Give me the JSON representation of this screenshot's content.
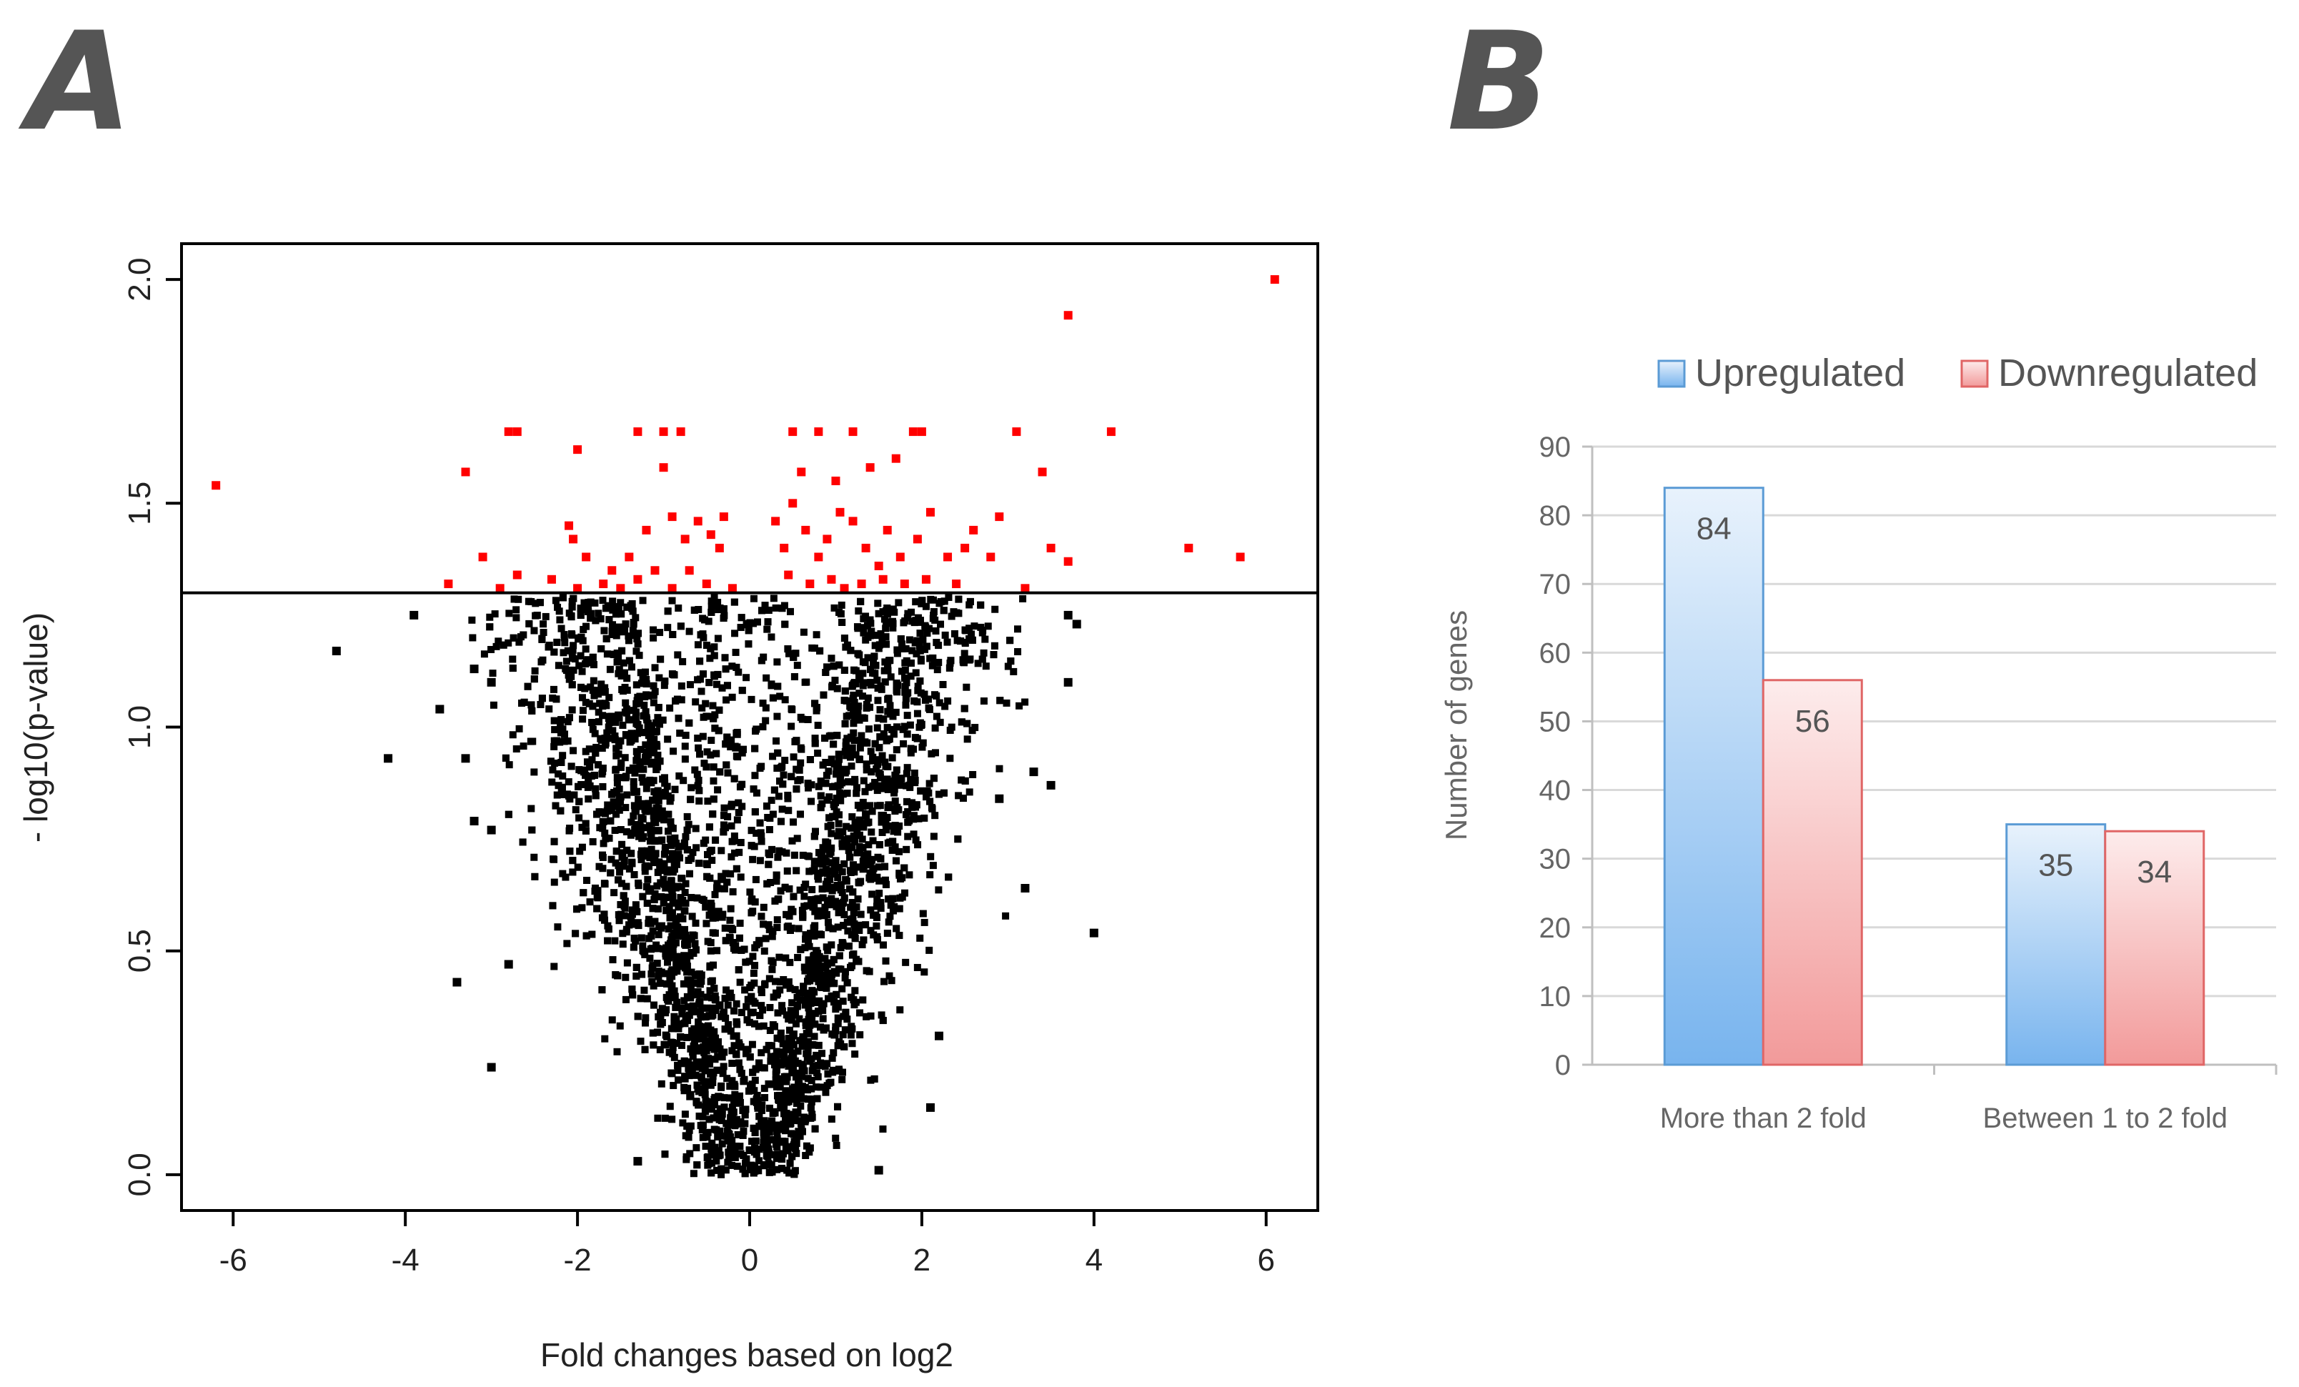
{
  "panels": {
    "a_label": "A",
    "b_label": "B"
  },
  "chart_data": [
    {
      "type": "scatter",
      "title": "",
      "xlabel": "Fold changes based on log2",
      "ylabel": "- log10(p-value)",
      "xlim": [
        -6.6,
        6.6
      ],
      "ylim": [
        -0.08,
        2.08
      ],
      "xticks": [
        -6,
        -4,
        -2,
        0,
        2,
        4,
        6
      ],
      "xtick_labels": [
        "-6",
        "-4",
        "-2",
        "0",
        "2",
        "4",
        "6"
      ],
      "yticks": [
        0.0,
        0.5,
        1.0,
        1.5,
        2.0
      ],
      "ytick_labels": [
        "0.0",
        "0.5",
        "1.0",
        "1.5",
        "2.0"
      ],
      "threshold": 1.3,
      "colors": {
        "significant": "#ff0000",
        "not_significant": "#000000"
      },
      "significant_points": [
        [
          -6.2,
          1.54
        ],
        [
          -3.3,
          1.57
        ],
        [
          -2.8,
          1.66
        ],
        [
          -2.7,
          1.66
        ],
        [
          -2.0,
          1.62
        ],
        [
          -1.3,
          1.66
        ],
        [
          -1.0,
          1.66
        ],
        [
          -0.8,
          1.66
        ],
        [
          -1.0,
          1.58
        ],
        [
          -3.5,
          1.32
        ],
        [
          -3.1,
          1.38
        ],
        [
          -2.7,
          1.34
        ],
        [
          -2.1,
          1.45
        ],
        [
          -2.05,
          1.42
        ],
        [
          -1.9,
          1.38
        ],
        [
          -1.6,
          1.35
        ],
        [
          -1.4,
          1.38
        ],
        [
          -1.2,
          1.44
        ],
        [
          -1.1,
          1.35
        ],
        [
          -0.9,
          1.47
        ],
        [
          -0.75,
          1.42
        ],
        [
          -0.6,
          1.46
        ],
        [
          -0.45,
          1.43
        ],
        [
          -0.35,
          1.4
        ],
        [
          -0.3,
          1.47
        ],
        [
          -1.5,
          1.31
        ],
        [
          -2.3,
          1.33
        ],
        [
          -0.9,
          1.31
        ],
        [
          -0.5,
          1.32
        ],
        [
          -1.7,
          1.32
        ],
        [
          -2.0,
          1.31
        ],
        [
          -1.3,
          1.33
        ],
        [
          -0.7,
          1.35
        ],
        [
          -2.9,
          1.31
        ],
        [
          -0.2,
          1.31
        ],
        [
          0.5,
          1.66
        ],
        [
          0.8,
          1.66
        ],
        [
          1.2,
          1.66
        ],
        [
          1.9,
          1.66
        ],
        [
          2.0,
          1.66
        ],
        [
          3.1,
          1.66
        ],
        [
          0.6,
          1.57
        ],
        [
          1.0,
          1.55
        ],
        [
          1.4,
          1.58
        ],
        [
          1.7,
          1.6
        ],
        [
          0.3,
          1.46
        ],
        [
          0.4,
          1.4
        ],
        [
          0.5,
          1.5
        ],
        [
          0.65,
          1.44
        ],
        [
          0.8,
          1.38
        ],
        [
          0.9,
          1.42
        ],
        [
          1.05,
          1.48
        ],
        [
          1.2,
          1.46
        ],
        [
          1.35,
          1.4
        ],
        [
          1.5,
          1.36
        ],
        [
          1.6,
          1.44
        ],
        [
          1.75,
          1.38
        ],
        [
          1.95,
          1.42
        ],
        [
          2.1,
          1.48
        ],
        [
          2.3,
          1.38
        ],
        [
          2.5,
          1.4
        ],
        [
          2.6,
          1.44
        ],
        [
          2.8,
          1.38
        ],
        [
          2.9,
          1.47
        ],
        [
          0.45,
          1.34
        ],
        [
          0.7,
          1.32
        ],
        [
          0.95,
          1.33
        ],
        [
          1.1,
          1.31
        ],
        [
          1.3,
          1.32
        ],
        [
          1.55,
          1.33
        ],
        [
          1.8,
          1.32
        ],
        [
          2.05,
          1.33
        ],
        [
          2.4,
          1.32
        ],
        [
          3.2,
          1.31
        ],
        [
          3.4,
          1.57
        ],
        [
          3.5,
          1.4
        ],
        [
          3.7,
          1.37
        ],
        [
          3.7,
          1.92
        ],
        [
          4.2,
          1.66
        ],
        [
          5.1,
          1.4
        ],
        [
          5.7,
          1.38
        ],
        [
          6.1,
          2.0
        ]
      ],
      "outlier_points": [
        [
          -4.8,
          1.17
        ],
        [
          -3.9,
          1.25
        ],
        [
          -4.2,
          0.93
        ],
        [
          -3.6,
          1.04
        ],
        [
          -3.2,
          1.13
        ],
        [
          -3.0,
          1.1
        ],
        [
          -3.3,
          0.93
        ],
        [
          -3.2,
          0.79
        ],
        [
          -3.0,
          0.77
        ],
        [
          -3.4,
          0.43
        ],
        [
          -2.8,
          0.47
        ],
        [
          -3.0,
          0.24
        ],
        [
          3.7,
          1.25
        ],
        [
          3.8,
          1.23
        ],
        [
          3.7,
          1.1
        ],
        [
          4.0,
          0.54
        ],
        [
          3.5,
          0.87
        ],
        [
          3.3,
          0.9
        ],
        [
          3.2,
          0.64
        ],
        [
          2.9,
          0.84
        ],
        [
          2.1,
          0.15
        ],
        [
          2.2,
          0.31
        ],
        [
          1.5,
          0.01
        ],
        [
          -1.3,
          0.03
        ]
      ]
    },
    {
      "type": "bar",
      "title": "",
      "xlabel": "",
      "ylabel": "Number of genes",
      "ylim": [
        0,
        90
      ],
      "yticks": [
        0,
        10,
        20,
        30,
        40,
        50,
        60,
        70,
        80,
        90
      ],
      "ytick_labels": [
        "0",
        "10",
        "20",
        "30",
        "40",
        "50",
        "60",
        "70",
        "80",
        "90"
      ],
      "categories": [
        "More than 2 fold",
        "Between 1 to 2 fold"
      ],
      "series": [
        {
          "name": "Upregulated",
          "values": [
            84,
            35
          ],
          "labels": [
            "84",
            "35"
          ],
          "color": "#5b9bd5"
        },
        {
          "name": "Downregulated",
          "values": [
            56,
            34
          ],
          "labels": [
            "56",
            "34"
          ],
          "color": "#e06666"
        }
      ],
      "legend_position": "top"
    }
  ]
}
